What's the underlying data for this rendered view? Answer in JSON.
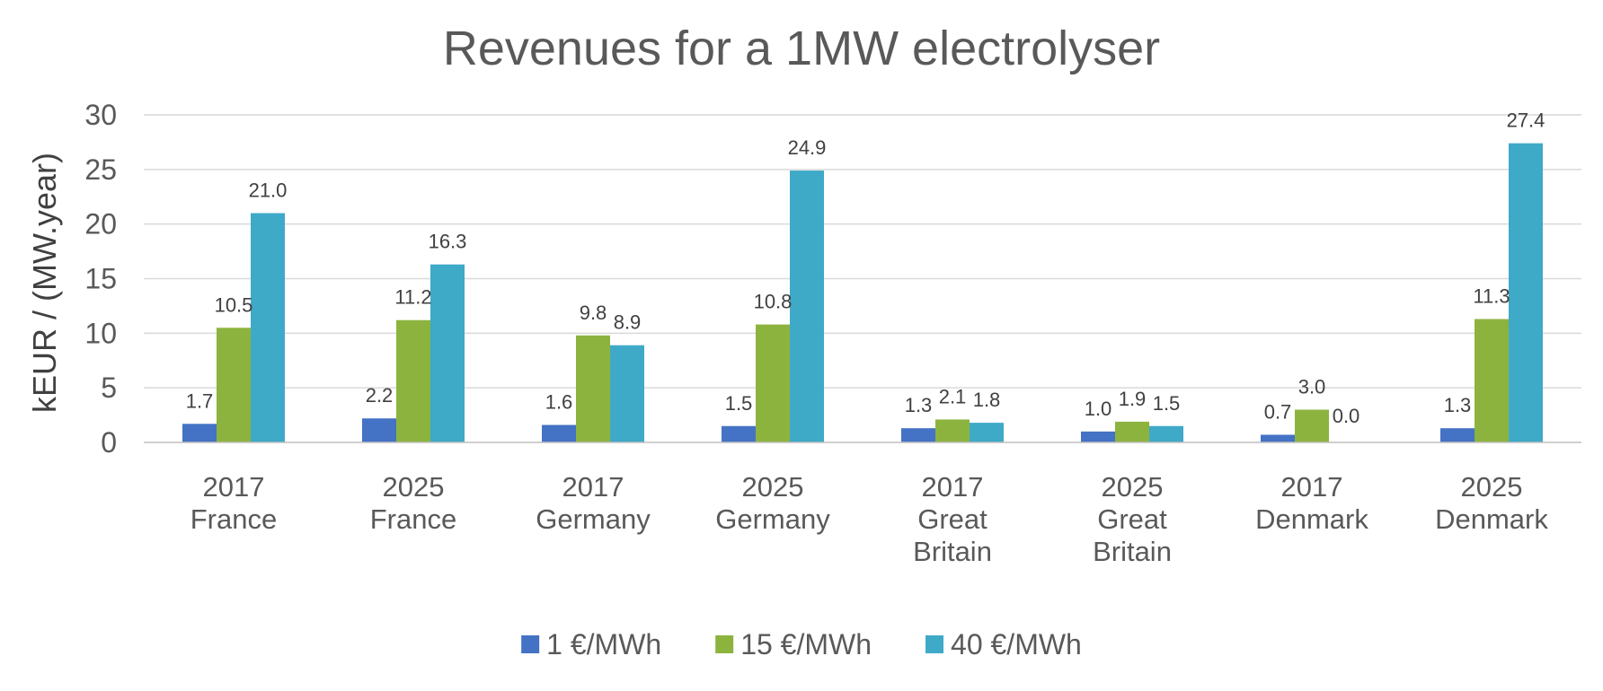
{
  "chart_data": {
    "type": "bar",
    "title": "Revenues for a 1MW electrolyser",
    "xlabel": "",
    "ylabel": "kEUR / (MW.year)",
    "ylim": [
      0,
      30
    ],
    "yticks": [
      "0",
      "5",
      "10",
      "15",
      "20",
      "25",
      "30"
    ],
    "grid": true,
    "legend_position": "bottom",
    "categories": [
      [
        "2017",
        "France"
      ],
      [
        "2025",
        "France"
      ],
      [
        "2017",
        "Germany"
      ],
      [
        "2025",
        "Germany"
      ],
      [
        "2017",
        "Great",
        "Britain"
      ],
      [
        "2025",
        "Great",
        "Britain"
      ],
      [
        "2017",
        "Denmark"
      ],
      [
        "2025",
        "Denmark"
      ]
    ],
    "series": [
      {
        "name": "1 €/MWh",
        "color": "#4472C4",
        "values": [
          1.7,
          2.2,
          1.6,
          1.5,
          1.3,
          1.0,
          0.7,
          1.3
        ],
        "labels": [
          "1.7",
          "2.2",
          "1.6",
          "1.5",
          "1.3",
          "1.0",
          "0.7",
          "1.3"
        ]
      },
      {
        "name": "15 €/MWh",
        "color": "#8DB33F",
        "values": [
          10.5,
          11.2,
          9.8,
          10.8,
          2.1,
          1.9,
          3.0,
          11.3
        ],
        "labels": [
          "10.5",
          "11.2",
          "9.8",
          "10.8",
          "2.1",
          "1.9",
          "3.0",
          "11.3"
        ]
      },
      {
        "name": "40 €/MWh",
        "color": "#3FA9C8",
        "values": [
          21.0,
          16.3,
          8.9,
          24.9,
          1.8,
          1.5,
          0.0,
          27.4
        ],
        "labels": [
          "21.0",
          "16.3",
          "8.9",
          "24.9",
          "1.8",
          "1.5",
          "0.0",
          "27.4"
        ]
      }
    ]
  }
}
